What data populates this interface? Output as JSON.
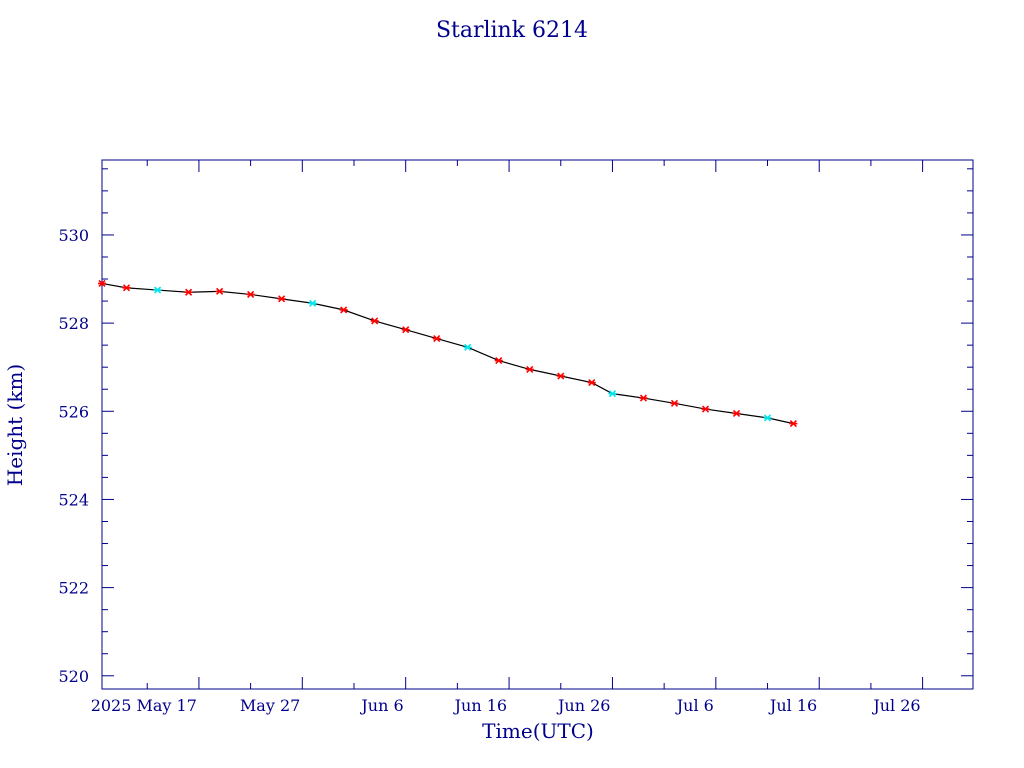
{
  "chart_data": {
    "type": "scatter",
    "title": "Starlink 6214",
    "xlabel": "Time(UTC)",
    "ylabel": "Height (km)",
    "x_ticks": [
      {
        "label": "2025 May 17",
        "date": "2025-05-17"
      },
      {
        "label": "May 27",
        "date": "2025-05-27"
      },
      {
        "label": "Jun  6",
        "date": "2025-06-06"
      },
      {
        "label": "Jun 16",
        "date": "2025-06-16"
      },
      {
        "label": "Jun 26",
        "date": "2025-06-26"
      },
      {
        "label": "Jul  6",
        "date": "2025-07-06"
      },
      {
        "label": "Jul 16",
        "date": "2025-07-16"
      },
      {
        "label": "Jul 26",
        "date": "2025-07-26"
      }
    ],
    "xlim": [
      "2025-05-07T15:00",
      "2025-07-30T21:00"
    ],
    "ylim": [
      519.7,
      531.7
    ],
    "y_ticks": [
      520,
      522,
      524,
      526,
      528,
      530
    ],
    "grid": false,
    "colors": {
      "axis": "#00008b",
      "points": "#ff0000",
      "points_alt": "#00e5ee",
      "line": "#000000"
    },
    "series": [
      {
        "x": [
          "2025-05-07T15:00",
          "2025-05-10T00:00",
          "2025-05-13T00:00",
          "2025-05-16T00:00",
          "2025-05-19T00:00",
          "2025-05-22T00:00",
          "2025-05-25T00:00",
          "2025-05-28T00:00",
          "2025-05-31T00:00",
          "2025-06-03T00:00",
          "2025-06-06T00:00",
          "2025-06-09T00:00",
          "2025-06-12T00:00",
          "2025-06-15T00:00",
          "2025-06-18T00:00",
          "2025-06-21T00:00",
          "2025-06-24T00:00",
          "2025-06-26T00:00",
          "2025-06-29T00:00",
          "2025-07-02T00:00",
          "2025-07-05T00:00",
          "2025-07-08T00:00",
          "2025-07-11T00:00",
          "2025-07-13T12:00"
        ],
        "y": [
          528.9,
          528.8,
          528.75,
          528.7,
          528.72,
          528.65,
          528.55,
          528.45,
          528.3,
          528.05,
          527.85,
          527.65,
          527.45,
          527.15,
          526.95,
          526.8,
          526.65,
          526.4,
          526.3,
          526.18,
          526.05,
          525.95,
          525.85,
          525.72
        ]
      }
    ]
  }
}
